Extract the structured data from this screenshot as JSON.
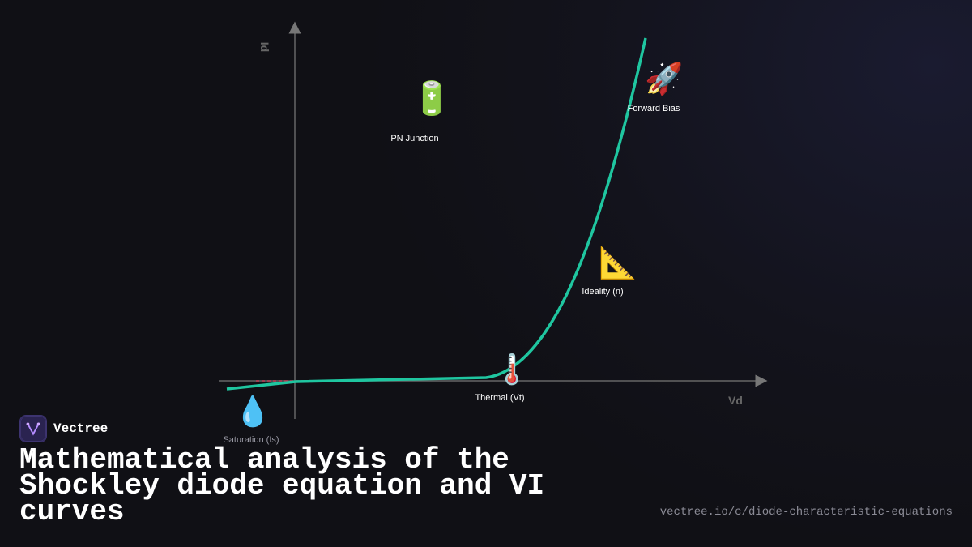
{
  "brand": "Vectree",
  "title": "Mathematical analysis of the Shockley diode equation and VI curves",
  "url": "vectree.io/c/diode-characteristic-equations",
  "diagram": {
    "y_axis_label": "Id",
    "x_axis_label": "Vd",
    "nodes": [
      {
        "icon": "💧",
        "label": "Saturation (Is)"
      },
      {
        "icon": "🌡️",
        "label": "Thermal (Vt)"
      },
      {
        "icon": "📐",
        "label": "Ideality (n)"
      },
      {
        "icon": "🔋",
        "label": "PN Junction"
      },
      {
        "icon": "🚀",
        "label": "Forward Bias"
      }
    ]
  }
}
